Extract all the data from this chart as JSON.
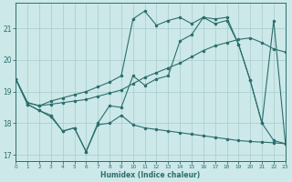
{
  "xlabel": "Humidex (Indice chaleur)",
  "bg_color": "#cce8e8",
  "grid_color": "#a8cccc",
  "line_color": "#2d6e6e",
  "xlim": [
    0,
    23
  ],
  "ylim": [
    16.8,
    21.8
  ],
  "yticks": [
    17,
    18,
    19,
    20,
    21
  ],
  "xticks": [
    0,
    1,
    2,
    3,
    4,
    5,
    6,
    7,
    8,
    9,
    10,
    11,
    12,
    13,
    14,
    15,
    16,
    17,
    18,
    19,
    20,
    21,
    22,
    23
  ],
  "line_jagged_x": [
    0,
    1,
    2,
    3,
    4,
    5,
    6,
    7,
    8,
    9,
    10,
    11,
    12,
    13,
    14,
    15,
    16,
    17,
    18,
    19,
    20,
    21,
    22,
    23
  ],
  "line_jagged_y": [
    19.4,
    18.6,
    18.4,
    18.2,
    17.75,
    17.85,
    17.1,
    18.0,
    18.55,
    18.5,
    19.5,
    19.2,
    19.4,
    19.5,
    20.6,
    20.8,
    21.35,
    21.15,
    21.25,
    20.5,
    19.35,
    18.0,
    17.45,
    17.35
  ],
  "line_smooth_x": [
    0,
    1,
    2,
    3,
    4,
    5,
    6,
    7,
    8,
    9,
    10,
    11,
    12,
    13,
    14,
    15,
    16,
    17,
    18,
    19,
    20,
    21,
    22,
    23
  ],
  "line_smooth_y": [
    19.4,
    18.65,
    18.55,
    18.6,
    18.65,
    18.7,
    18.75,
    18.85,
    18.95,
    19.05,
    19.25,
    19.45,
    19.6,
    19.75,
    19.9,
    20.1,
    20.3,
    20.45,
    20.55,
    20.65,
    20.7,
    20.55,
    20.35,
    20.25
  ],
  "line_upper_x": [
    0,
    1,
    2,
    3,
    4,
    5,
    6,
    7,
    8,
    9,
    10,
    11,
    12,
    13,
    14,
    15,
    16,
    17,
    18,
    19,
    20,
    21,
    22,
    23
  ],
  "line_upper_y": [
    19.4,
    18.65,
    18.55,
    18.7,
    18.8,
    18.9,
    19.0,
    19.15,
    19.3,
    19.5,
    21.3,
    21.55,
    21.1,
    21.25,
    21.35,
    21.15,
    21.35,
    21.3,
    21.35,
    20.5,
    19.35,
    18.0,
    21.25,
    17.35
  ],
  "line_lower_x": [
    0,
    1,
    2,
    3,
    4,
    5,
    6,
    7,
    8,
    9,
    10,
    11,
    12,
    13,
    14,
    15,
    16,
    17,
    18,
    19,
    20,
    21,
    22,
    23
  ],
  "line_lower_y": [
    19.4,
    18.6,
    18.4,
    18.25,
    17.75,
    17.85,
    17.1,
    17.95,
    18.0,
    18.25,
    17.95,
    17.85,
    17.8,
    17.75,
    17.7,
    17.65,
    17.6,
    17.55,
    17.5,
    17.45,
    17.42,
    17.4,
    17.38,
    17.35
  ]
}
